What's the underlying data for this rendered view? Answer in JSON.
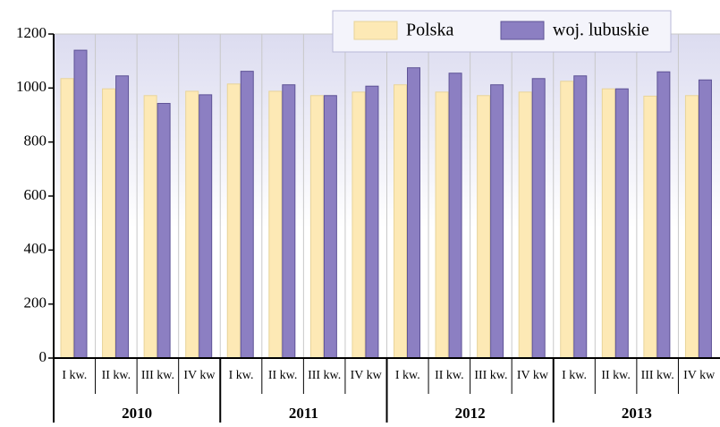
{
  "chart_data": {
    "type": "bar",
    "categories": [
      "I kw.",
      "II kw.",
      "III kw.",
      "IV kw",
      "I kw.",
      "II kw.",
      "III kw.",
      "IV kw",
      "I kw.",
      "II kw.",
      "III kw.",
      "IV kw",
      "I kw.",
      "II kw.",
      "III kw.",
      "IV kw"
    ],
    "groups": [
      "2010",
      "2011",
      "2012",
      "2013"
    ],
    "series": [
      {
        "name": "Polska",
        "color": "#fde9b5",
        "values": [
          1035,
          997,
          972,
          988,
          1015,
          988,
          972,
          985,
          1012,
          985,
          972,
          985,
          1025,
          997,
          970,
          972
        ]
      },
      {
        "name": "woj. lubuskie",
        "color": "#8c7fc2",
        "values": [
          1140,
          1045,
          943,
          975,
          1062,
          1012,
          972,
          1007,
          1075,
          1055,
          1012,
          1035,
          1045,
          997,
          1060,
          1030
        ]
      }
    ],
    "ylim": [
      0,
      1200
    ],
    "yticks": [
      0,
      200,
      400,
      600,
      800,
      1000,
      1200
    ],
    "grid": true
  }
}
